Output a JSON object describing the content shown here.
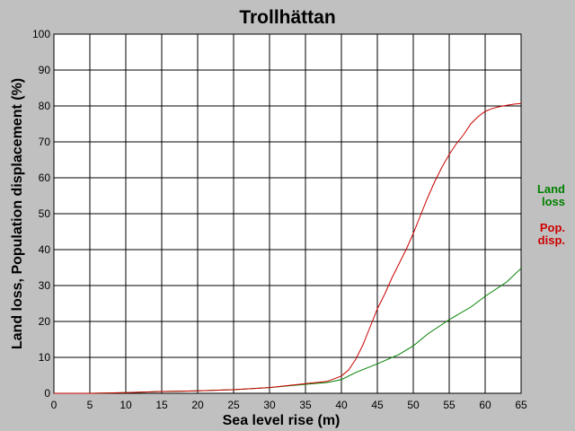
{
  "chart_data": {
    "type": "line",
    "title": "Trollhättan",
    "xlabel": "Sea level rise (m)",
    "ylabel": "Land loss, Population displacement (%)",
    "xlim": [
      0,
      65
    ],
    "ylim": [
      0,
      100
    ],
    "xticks": [
      0,
      5,
      10,
      15,
      20,
      25,
      30,
      35,
      40,
      45,
      50,
      55,
      60,
      65
    ],
    "yticks": [
      0,
      10,
      20,
      30,
      40,
      50,
      60,
      70,
      80,
      90,
      100
    ],
    "grid": true,
    "legend_position": "right",
    "series": [
      {
        "key": "land",
        "legend": [
          "Land",
          "loss"
        ],
        "color": "#008000",
        "x": [
          0,
          5,
          8,
          10,
          12,
          15,
          18,
          20,
          25,
          30,
          35,
          38,
          40,
          42,
          45,
          48,
          50,
          52,
          55,
          58,
          60,
          63,
          65
        ],
        "y": [
          0,
          0,
          0.1,
          0.2,
          0.3,
          0.5,
          0.6,
          0.7,
          1.0,
          1.6,
          2.5,
          3.0,
          3.8,
          5.8,
          8.2,
          10.8,
          13.2,
          16.5,
          20.5,
          24.0,
          27.0,
          31.0,
          34.8
        ]
      },
      {
        "key": "pop",
        "legend": [
          "Pop.",
          "disp."
        ],
        "color": "#cc0000",
        "x": [
          0,
          5,
          8,
          10,
          12,
          15,
          18,
          20,
          25,
          30,
          35,
          38,
          40,
          41,
          42,
          43,
          44,
          45,
          46,
          47,
          48,
          49,
          50,
          51,
          52,
          53,
          54,
          55,
          56,
          57,
          58,
          59,
          60,
          61,
          62,
          63,
          64,
          65
        ],
        "y": [
          0,
          0,
          0.1,
          0.2,
          0.3,
          0.5,
          0.6,
          0.7,
          1.0,
          1.6,
          2.7,
          3.3,
          4.8,
          6.5,
          9.5,
          13.5,
          18.5,
          23.5,
          27.5,
          32.0,
          36.0,
          40.0,
          44.5,
          49.5,
          54.5,
          59.0,
          63.0,
          66.5,
          69.5,
          72.0,
          75.0,
          77.0,
          78.5,
          79.3,
          79.8,
          80.2,
          80.5,
          80.7
        ]
      }
    ]
  }
}
